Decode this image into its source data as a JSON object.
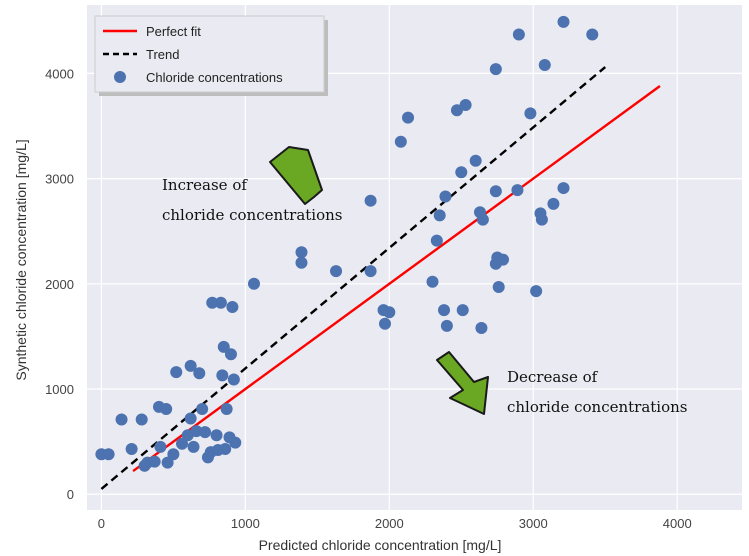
{
  "chart_data": {
    "type": "scatter",
    "title": "",
    "xlabel": "Predicted chloride concentration [mg/L]",
    "ylabel": "Synthetic chloride concentration [mg/L]",
    "xlim": [
      -100,
      4450
    ],
    "ylim": [
      -150,
      4650
    ],
    "xticks": [
      0,
      1000,
      2000,
      3000,
      4000
    ],
    "yticks": [
      0,
      1000,
      2000,
      3000,
      4000
    ],
    "grid": true,
    "legend_position": "top-left",
    "colors": {
      "background": "#eaeaf2",
      "grid": "#ffffff",
      "points": "#4c72b0",
      "perfect_fit": "#ff0000",
      "trend": "#000000",
      "arrow_fill": "#6aa823",
      "arrow_stroke": "#1a1a1a"
    },
    "series": [
      {
        "name": "Perfect fit",
        "kind": "line",
        "style": "solid",
        "x": [
          220,
          3880
        ],
        "y": [
          220,
          3880
        ]
      },
      {
        "name": "Trend",
        "kind": "line",
        "style": "dashed",
        "x": [
          0,
          3500
        ],
        "y": [
          50,
          4060
        ]
      },
      {
        "name": "Chloride concentrations",
        "kind": "scatter",
        "points": [
          [
            0,
            380
          ],
          [
            50,
            380
          ],
          [
            140,
            710
          ],
          [
            210,
            430
          ],
          [
            280,
            710
          ],
          [
            300,
            270
          ],
          [
            320,
            300
          ],
          [
            370,
            310
          ],
          [
            400,
            830
          ],
          [
            410,
            450
          ],
          [
            450,
            810
          ],
          [
            460,
            300
          ],
          [
            500,
            380
          ],
          [
            520,
            1160
          ],
          [
            560,
            480
          ],
          [
            600,
            560
          ],
          [
            620,
            720
          ],
          [
            620,
            1220
          ],
          [
            640,
            450
          ],
          [
            660,
            600
          ],
          [
            680,
            1150
          ],
          [
            700,
            810
          ],
          [
            720,
            590
          ],
          [
            740,
            350
          ],
          [
            760,
            400
          ],
          [
            770,
            1820
          ],
          [
            800,
            560
          ],
          [
            810,
            420
          ],
          [
            830,
            1820
          ],
          [
            840,
            1130
          ],
          [
            850,
            1400
          ],
          [
            860,
            430
          ],
          [
            870,
            810
          ],
          [
            890,
            540
          ],
          [
            900,
            1330
          ],
          [
            910,
            1780
          ],
          [
            920,
            1090
          ],
          [
            930,
            490
          ],
          [
            1060,
            2000
          ],
          [
            1390,
            2300
          ],
          [
            1390,
            2200
          ],
          [
            1630,
            2120
          ],
          [
            1870,
            2790
          ],
          [
            1870,
            2120
          ],
          [
            1960,
            1750
          ],
          [
            1970,
            1620
          ],
          [
            2000,
            1730
          ],
          [
            2080,
            3350
          ],
          [
            2130,
            3580
          ],
          [
            2300,
            2020
          ],
          [
            2330,
            2410
          ],
          [
            2350,
            2650
          ],
          [
            2380,
            1750
          ],
          [
            2390,
            2830
          ],
          [
            2400,
            1600
          ],
          [
            2470,
            3650
          ],
          [
            2500,
            3060
          ],
          [
            2510,
            1750
          ],
          [
            2530,
            3700
          ],
          [
            2600,
            3170
          ],
          [
            2630,
            2680
          ],
          [
            2640,
            1580
          ],
          [
            2650,
            2610
          ],
          [
            2740,
            4040
          ],
          [
            2740,
            2880
          ],
          [
            2740,
            2190
          ],
          [
            2750,
            2250
          ],
          [
            2760,
            1970
          ],
          [
            2790,
            2230
          ],
          [
            2890,
            2890
          ],
          [
            2900,
            4370
          ],
          [
            2980,
            3620
          ],
          [
            3020,
            1930
          ],
          [
            3050,
            2670
          ],
          [
            3060,
            2610
          ],
          [
            3080,
            4080
          ],
          [
            3140,
            2760
          ],
          [
            3210,
            4490
          ],
          [
            3210,
            2910
          ],
          [
            3410,
            4370
          ]
        ]
      }
    ],
    "annotations": [
      {
        "line1": "Increase of",
        "line2": "chloride concentrations"
      },
      {
        "line1": "Decrease of",
        "line2": "chloride concentrations"
      }
    ]
  }
}
